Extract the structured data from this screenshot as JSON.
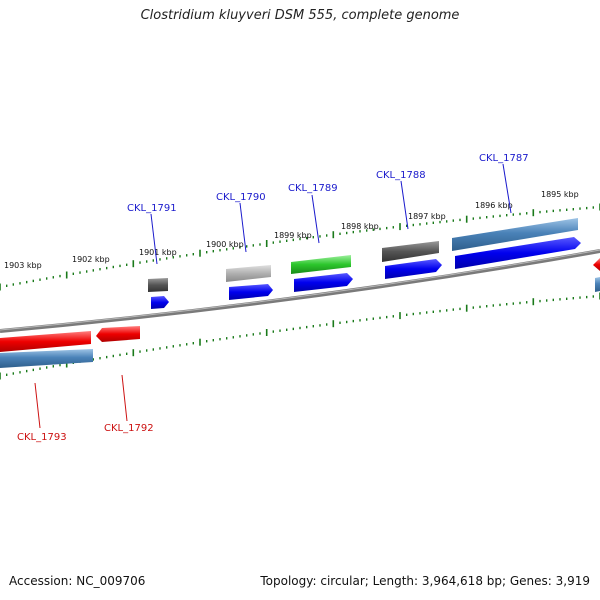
{
  "title": "Clostridium kluyveri DSM 555, complete genome",
  "footer": {
    "accession": "Accession: NC_009706",
    "summary": "Topology: circular; Length: 3,964,618 bp; Genes: 3,919"
  },
  "colors": {
    "backbone": "#8a8a8a",
    "tick": "#1a7a1a",
    "forward_label": "#1a1acc",
    "reverse_label": "#cc1111",
    "cds_forward": "#0000ee",
    "cds_reverse": "#ee0000",
    "cds_bar": "#4a82b8"
  },
  "scale_labels": [
    "1895 kbp",
    "1896 kbp",
    "1897 kbp",
    "1898 kbp",
    "1899 kbp",
    "1900 kbp",
    "1901 kbp",
    "1902 kbp",
    "1903 kbp"
  ],
  "genes": [
    {
      "name": "CKL_1787",
      "strand": "forward",
      "feature": "steelblue"
    },
    {
      "name": "CKL_1788",
      "strand": "forward",
      "feature": "dark-gray"
    },
    {
      "name": "CKL_1789",
      "strand": "forward",
      "feature": "green"
    },
    {
      "name": "CKL_1790",
      "strand": "forward",
      "feature": "light-gray"
    },
    {
      "name": "CKL_1791",
      "strand": "forward",
      "feature": "dark-gray"
    },
    {
      "name": "CKL_1792",
      "strand": "reverse",
      "feature": "red"
    },
    {
      "name": "CKL_1793",
      "strand": "reverse",
      "feature": "red"
    }
  ]
}
